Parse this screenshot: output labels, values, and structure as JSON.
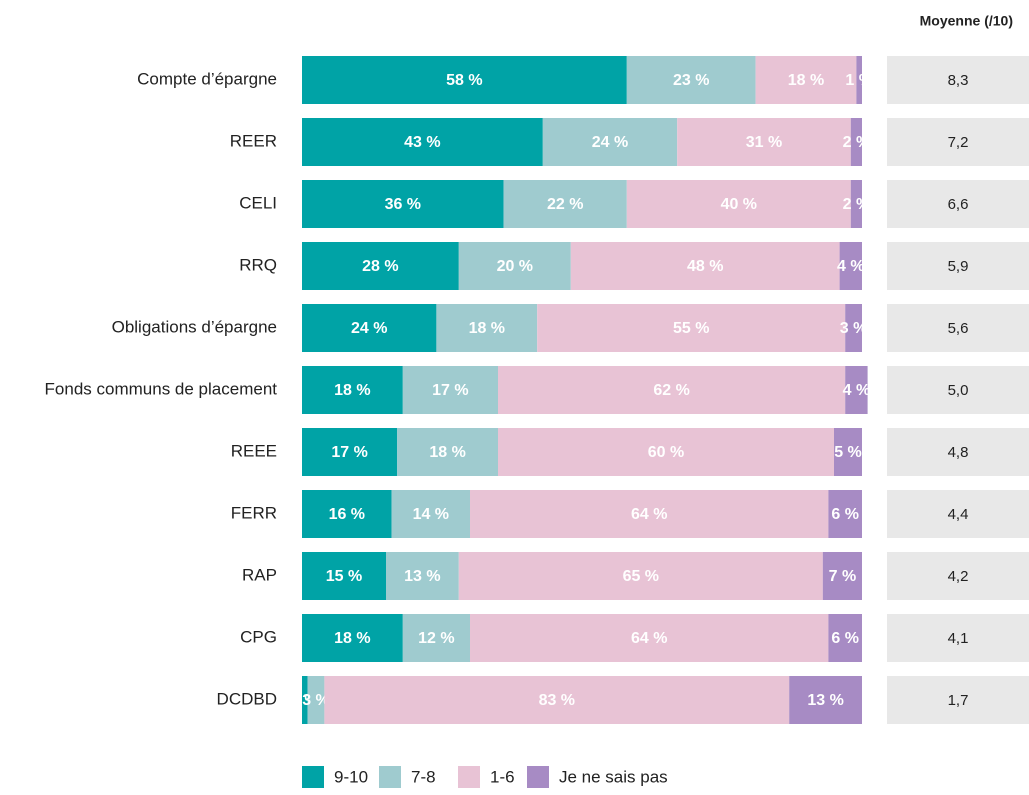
{
  "chart_data": {
    "type": "stacked-bar",
    "orientation": "horizontal",
    "categories": [
      "Compte d’épargne",
      "REER",
      "CELI",
      "RRQ",
      "Obligations d’épargne",
      "Fonds communs de placement",
      "REEE",
      "FERR",
      "RAP",
      "CPG",
      "DCDBD"
    ],
    "series": [
      {
        "name": "9-10",
        "color": "#00a3a6",
        "values": [
          58,
          43,
          36,
          28,
          24,
          18,
          17,
          16,
          15,
          18,
          1
        ],
        "value_labels": [
          "58 %",
          "43 %",
          "36 %",
          "28 %",
          "24 %",
          "18 %",
          "17 %",
          "16 %",
          "15 %",
          "18 %",
          "1 %"
        ]
      },
      {
        "name": "7-8",
        "color": "#9fcbcf",
        "values": [
          23,
          24,
          22,
          20,
          18,
          17,
          18,
          14,
          13,
          12,
          3
        ],
        "value_labels": [
          "23 %",
          "24 %",
          "22 %",
          "20 %",
          "18 %",
          "17 %",
          "18 %",
          "14 %",
          "13 %",
          "12 %",
          "3 %"
        ]
      },
      {
        "name": "1-6",
        "color": "#e8c3d5",
        "values": [
          18,
          31,
          40,
          48,
          55,
          62,
          60,
          64,
          65,
          64,
          83
        ],
        "value_labels": [
          "18 %",
          "31 %",
          "40 %",
          "48 %",
          "55 %",
          "62 %",
          "60 %",
          "64 %",
          "65 %",
          "64 %",
          "83 %"
        ]
      },
      {
        "name": "Je ne sais pas",
        "color": "#a78bc4",
        "values": [
          1,
          2,
          2,
          4,
          3,
          4,
          5,
          6,
          7,
          6,
          13
        ],
        "value_labels": [
          "1 %",
          "2 %",
          "2 %",
          "4 %",
          "3 %",
          "4 %",
          "5 %",
          "6 %",
          "7 %",
          "6 %",
          "13 %"
        ]
      }
    ],
    "averages": {
      "title": "Moyenne (/10)",
      "values": [
        8.3,
        7.2,
        6.6,
        5.9,
        5.6,
        5.0,
        4.8,
        4.4,
        4.2,
        4.1,
        1.7
      ],
      "value_labels": [
        "8,3",
        "7,2",
        "6,6",
        "5,9",
        "5,6",
        "5,0",
        "4,8",
        "4,4",
        "4,2",
        "4,1",
        "1,7"
      ]
    }
  }
}
